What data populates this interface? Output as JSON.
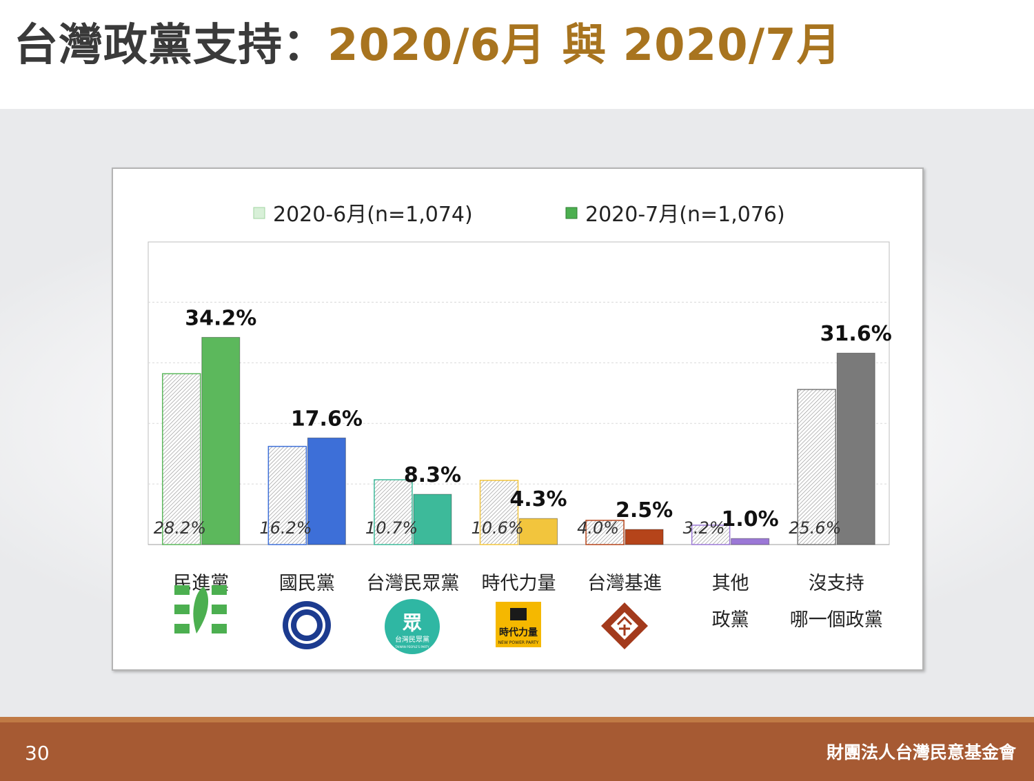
{
  "title": {
    "main": "台灣政黨支持：",
    "accent": "2020/6月 與 2020/7月"
  },
  "page_number": "30",
  "organization": "財團法人台灣民意基金會",
  "colors": {
    "title_main": "#3a3a3a",
    "title_accent": "#a8741f",
    "footer": "#a65a33",
    "dpp": "#5cb85c",
    "kmt": "#3d6fd8",
    "tpp": "#3dba9a",
    "npp": "#f2c53d",
    "tsp": "#b5441a",
    "other": "#9b78d6",
    "none": "#7a7a7a"
  },
  "logos": {
    "dpp": "dpp-flag-logo",
    "kmt": "kmt-emblem-logo",
    "tpp": "tpp-circle-logo",
    "npp": "npp-square-logo",
    "tsp": "tsp-diamond-logo"
  },
  "tpp_logo_char": "眾",
  "tpp_logo_text": "台灣民眾黨",
  "tpp_logo_sub": "TAIWAN PEOPLE'S PARTY",
  "npp_logo_text": "時代力量",
  "npp_logo_sub": "NEW POWER PARTY",
  "chart_data": {
    "type": "bar",
    "title": "",
    "xlabel": "",
    "ylabel": "",
    "ylim": [
      0,
      50
    ],
    "grid": true,
    "legend_position": "top",
    "categories": [
      "民進黨",
      "國民黨",
      "台灣民眾黨",
      "時代力量",
      "台灣基進",
      "其他\n政黨",
      "沒支持\n哪一個政黨"
    ],
    "series": [
      {
        "name": "2020-6月(n=1,074)",
        "values": [
          28.2,
          16.2,
          10.7,
          10.6,
          4.0,
          3.2,
          25.6
        ],
        "labels": [
          "28.2%",
          "16.2%",
          "10.7%",
          "10.6%",
          "4.0%",
          "3.2%",
          "25.6%"
        ]
      },
      {
        "name": "2020-7月(n=1,076)",
        "values": [
          34.2,
          17.6,
          8.3,
          4.3,
          2.5,
          1.0,
          31.6
        ],
        "labels": [
          "34.2%",
          "17.6%",
          "8.3%",
          "4.3%",
          "2.5%",
          "1.0%",
          "31.6%"
        ]
      }
    ]
  }
}
